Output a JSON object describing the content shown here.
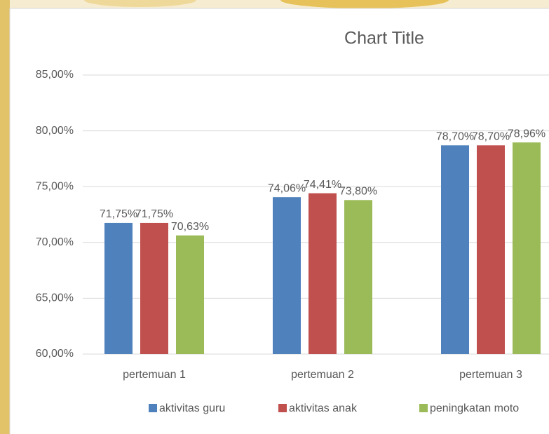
{
  "chart_data": {
    "type": "bar",
    "title": "Chart Title",
    "categories": [
      "pertemuan 1",
      "pertemuan 2",
      "pertemuan 3"
    ],
    "series": [
      {
        "name": "aktivitas guru",
        "color": "#4f81bd",
        "values": [
          71.75,
          74.06,
          78.7
        ],
        "value_labels": [
          "71,75%",
          "74,06%",
          "78,70%"
        ]
      },
      {
        "name": "aktivitas anak",
        "color": "#c0504d",
        "values": [
          71.75,
          74.41,
          78.7
        ],
        "value_labels": [
          "71,75%",
          "74,41%",
          "78,70%"
        ]
      },
      {
        "name": "peningkatan moto",
        "color": "#9bbb59",
        "values": [
          70.63,
          73.8,
          78.96
        ],
        "value_labels": [
          "70,63%",
          "73,80%",
          "78,96%"
        ]
      }
    ],
    "ylim": [
      60,
      85
    ],
    "yticks": [
      {
        "value": 60,
        "label": "60,00%"
      },
      {
        "value": 65,
        "label": "65,00%"
      },
      {
        "value": 70,
        "label": "70,00%"
      },
      {
        "value": 75,
        "label": "75,00%"
      },
      {
        "value": 80,
        "label": "80,00%"
      },
      {
        "value": 85,
        "label": "85,00%"
      }
    ],
    "grid": true
  }
}
